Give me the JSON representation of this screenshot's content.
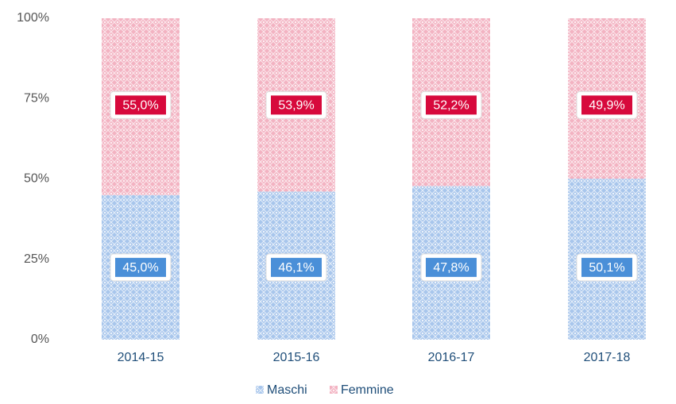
{
  "chart_data": {
    "type": "stacked_bar",
    "categories": [
      "2014-15",
      "2015-16",
      "2016-17",
      "2017-18"
    ],
    "series": [
      {
        "name": "Maschi",
        "color": "#a8c6ec",
        "label_color": "#4a8fd8",
        "values": [
          45.0,
          46.1,
          47.8,
          50.1
        ],
        "value_labels": [
          "45,0%",
          "46,1%",
          "47,8%",
          "50,1%"
        ]
      },
      {
        "name": "Femmine",
        "color": "#f3b3c2",
        "label_color": "#d7093c",
        "values": [
          55.0,
          53.9,
          52.2,
          49.9
        ],
        "value_labels": [
          "55,0%",
          "53,9%",
          "52,2%",
          "49,9%"
        ]
      }
    ],
    "ylim": [
      0,
      100
    ],
    "yticks": [
      {
        "value": 0,
        "label": "0%"
      },
      {
        "value": 25,
        "label": "25%"
      },
      {
        "value": 50,
        "label": "50%"
      },
      {
        "value": 75,
        "label": "75%"
      },
      {
        "value": 100,
        "label": "100%"
      }
    ],
    "legend": "bottom"
  }
}
